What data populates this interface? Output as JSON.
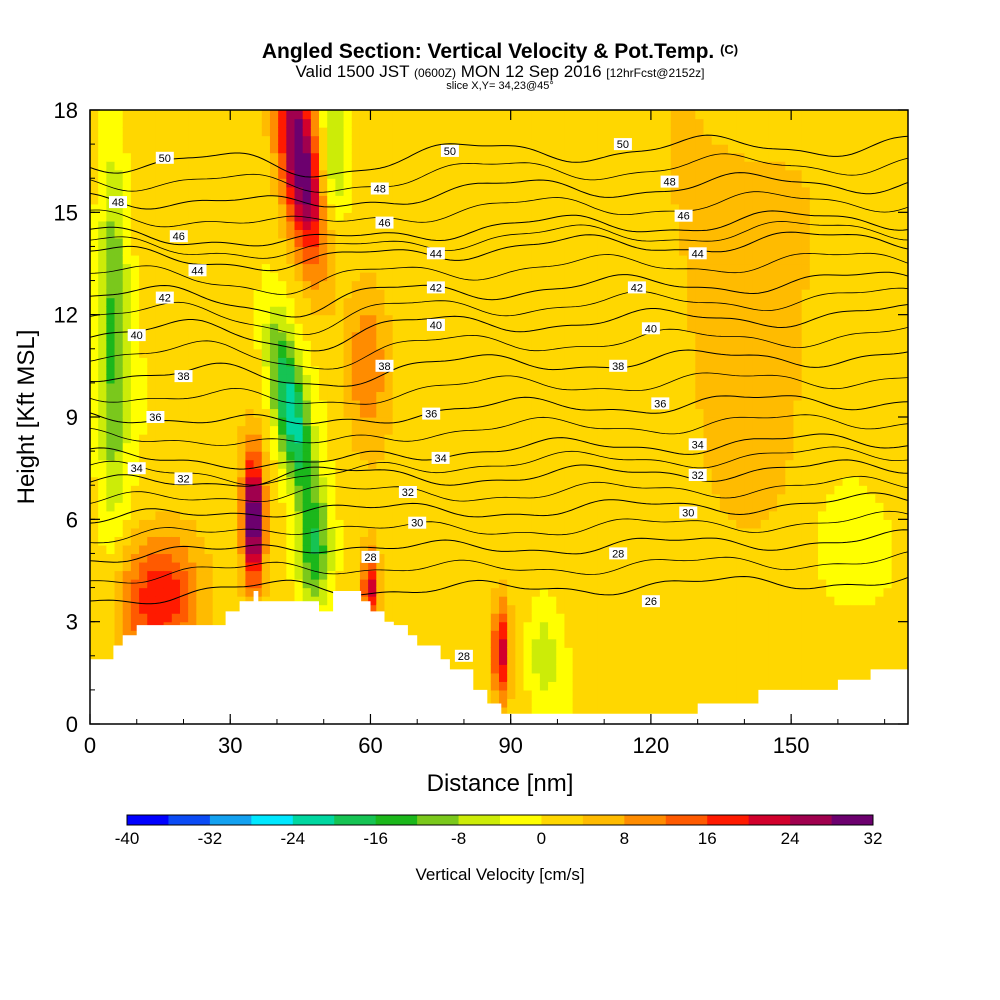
{
  "header": {
    "title": "Angled Section: Vertical Velocity & Pot.Temp.",
    "title_unit": "(C)",
    "valid_prefix": "Valid 1500 JST",
    "valid_utc": "(0600Z)",
    "valid_date": "MON 12 Sep 2016",
    "forecast_info": "[12hrFcst@2152z]",
    "slice_info": "slice X,Y= 34,23@45°"
  },
  "chart_data": {
    "type": "heatmap",
    "xlabel": "Distance [nm]",
    "ylabel": "Height [Kft MSL]",
    "xlim": [
      0,
      175
    ],
    "ylim": [
      0,
      18
    ],
    "x_ticks": [
      0,
      30,
      60,
      90,
      120,
      150
    ],
    "y_ticks": [
      0,
      3,
      6,
      9,
      12,
      15,
      18
    ],
    "grid": false,
    "colorbar": {
      "title": "Vertical Velocity [cm/s]",
      "placement": "bottom",
      "min": -40,
      "max": 32,
      "step": 4,
      "tick_labels": [
        "-40",
        "-32",
        "-24",
        "-16",
        "-8",
        "0",
        "8",
        "16",
        "24",
        "32"
      ],
      "colors": [
        "#0000ff",
        "#0b4bf5",
        "#13a1f0",
        "#00e8ff",
        "#00d7a0",
        "#16c353",
        "#1bb71b",
        "#7ac81c",
        "#ccec08",
        "#ffff00",
        "#ffd700",
        "#ffbb00",
        "#ff8c00",
        "#ff5a00",
        "#ff1a00",
        "#d2002c",
        "#a0004e",
        "#6c006e"
      ]
    },
    "terrain_profile": {
      "x": [
        0,
        5,
        5,
        7,
        7,
        10,
        10,
        20,
        20,
        29,
        29,
        32,
        32,
        35,
        35,
        36,
        36,
        38,
        38,
        42,
        42,
        49,
        49,
        52,
        52,
        58,
        58,
        60,
        60,
        63,
        63,
        65,
        65,
        68,
        68,
        70,
        70,
        75,
        75,
        77,
        77,
        82,
        82,
        85,
        85,
        88,
        88,
        90,
        90,
        100,
        100,
        130,
        130,
        143,
        143,
        160,
        160,
        167,
        167,
        175
      ],
      "y": [
        1.9,
        1.9,
        2.3,
        2.3,
        2.6,
        2.6,
        2.9,
        2.9,
        2.9,
        2.9,
        3.3,
        3.3,
        3.6,
        3.6,
        3.9,
        3.9,
        3.6,
        3.6,
        3.6,
        3.6,
        3.6,
        3.6,
        3.3,
        3.3,
        3.9,
        3.9,
        3.6,
        3.6,
        3.3,
        3.3,
        3.0,
        3.0,
        2.9,
        2.9,
        2.6,
        2.6,
        2.3,
        2.3,
        1.9,
        1.9,
        1.6,
        1.6,
        1.0,
        1.0,
        0.6,
        0.6,
        0.3,
        0.3,
        0.3,
        0.3,
        0.3,
        0.3,
        0.6,
        0.6,
        1.0,
        1.0,
        1.3,
        1.3,
        1.6,
        1.6
      ]
    },
    "velocity_features": [
      {
        "x": 45,
        "y": 16.5,
        "sx": 3.0,
        "sy": 2.2,
        "tilt": -0.25,
        "value": 30
      },
      {
        "x": 35,
        "y": 6.0,
        "sx": 1.6,
        "sy": 1.4,
        "tilt": 0,
        "value": 32
      },
      {
        "x": 15,
        "y": 3.7,
        "sx": 6.0,
        "sy": 1.3,
        "tilt": 0,
        "value": 18
      },
      {
        "x": 60,
        "y": 4.0,
        "sx": 1.3,
        "sy": 0.8,
        "tilt": 0,
        "value": 20
      },
      {
        "x": 88,
        "y": 2.2,
        "sx": 1.3,
        "sy": 1.0,
        "tilt": 0,
        "value": 20
      },
      {
        "x": 59,
        "y": 10.5,
        "sx": 3.0,
        "sy": 1.6,
        "tilt": 0,
        "value": 10
      },
      {
        "x": 43,
        "y": 9.2,
        "sx": 2.5,
        "sy": 1.8,
        "tilt": -0.3,
        "value": -24
      },
      {
        "x": 48,
        "y": 5.0,
        "sx": 2.5,
        "sy": 1.2,
        "tilt": 0,
        "value": -16
      },
      {
        "x": 5,
        "y": 11.5,
        "sx": 2.2,
        "sy": 4.0,
        "tilt": 0,
        "value": -14
      },
      {
        "x": 52,
        "y": 16.8,
        "sx": 2.2,
        "sy": 1.5,
        "tilt": 0,
        "value": -12
      },
      {
        "x": 97,
        "y": 2.0,
        "sx": 2.2,
        "sy": 1.0,
        "tilt": 0,
        "value": -8
      },
      {
        "x": 163,
        "y": 5.0,
        "sx": 6.0,
        "sy": 1.2,
        "tilt": 0,
        "value": -5
      },
      {
        "x": 140,
        "y": 12.5,
        "sx": 12.0,
        "sy": 5.0,
        "tilt": 0,
        "value": 5
      }
    ],
    "theta_levels": [
      {
        "value": 26,
        "y0": 3.7,
        "label": "26",
        "label_positions": [
          [
            120,
            3.6
          ]
        ]
      },
      {
        "value": 28,
        "y0": 4.9,
        "label": "28",
        "label_positions": [
          [
            60,
            4.9
          ],
          [
            113,
            5.0
          ],
          [
            80,
            2.0
          ]
        ]
      },
      {
        "value": 30,
        "y0": 6.0,
        "label": "30",
        "label_positions": [
          [
            70,
            5.9
          ],
          [
            128,
            6.2
          ]
        ]
      },
      {
        "value": 32,
        "y0": 7.0,
        "label": "32",
        "label_positions": [
          [
            20,
            7.2
          ],
          [
            68,
            6.8
          ],
          [
            130,
            7.3
          ]
        ]
      },
      {
        "value": 34,
        "y0": 7.8,
        "label": "34",
        "label_positions": [
          [
            10,
            7.5
          ],
          [
            75,
            7.8
          ],
          [
            130,
            8.2
          ]
        ]
      },
      {
        "value": 36,
        "y0": 9.0,
        "label": "36",
        "label_positions": [
          [
            14,
            9.0
          ],
          [
            73,
            9.1
          ],
          [
            122,
            9.4
          ]
        ]
      },
      {
        "value": 38,
        "y0": 10.3,
        "label": "38",
        "label_positions": [
          [
            20,
            10.2
          ],
          [
            63,
            10.5
          ],
          [
            113,
            10.5
          ]
        ]
      },
      {
        "value": 40,
        "y0": 11.5,
        "label": "40",
        "label_positions": [
          [
            10,
            11.4
          ],
          [
            74,
            11.7
          ],
          [
            120,
            11.6
          ]
        ]
      },
      {
        "value": 42,
        "y0": 12.5,
        "label": "42",
        "label_positions": [
          [
            16,
            12.5
          ],
          [
            74,
            12.8
          ],
          [
            117,
            12.8
          ]
        ]
      },
      {
        "value": 44,
        "y0": 13.7,
        "label": "44",
        "label_positions": [
          [
            23,
            13.3
          ],
          [
            74,
            13.8
          ],
          [
            130,
            13.8
          ]
        ]
      },
      {
        "value": 46,
        "y0": 14.3,
        "label": "46",
        "label_positions": [
          [
            19,
            14.3
          ],
          [
            63,
            14.7
          ],
          [
            127,
            14.9
          ]
        ]
      },
      {
        "value": 48,
        "y0": 15.4,
        "label": "48",
        "label_positions": [
          [
            6,
            15.3
          ],
          [
            62,
            15.7
          ],
          [
            124,
            15.9
          ]
        ]
      },
      {
        "value": 50,
        "y0": 16.5,
        "label": "50",
        "label_positions": [
          [
            16,
            16.6
          ],
          [
            77,
            16.8
          ],
          [
            114,
            17.0
          ]
        ]
      }
    ]
  }
}
